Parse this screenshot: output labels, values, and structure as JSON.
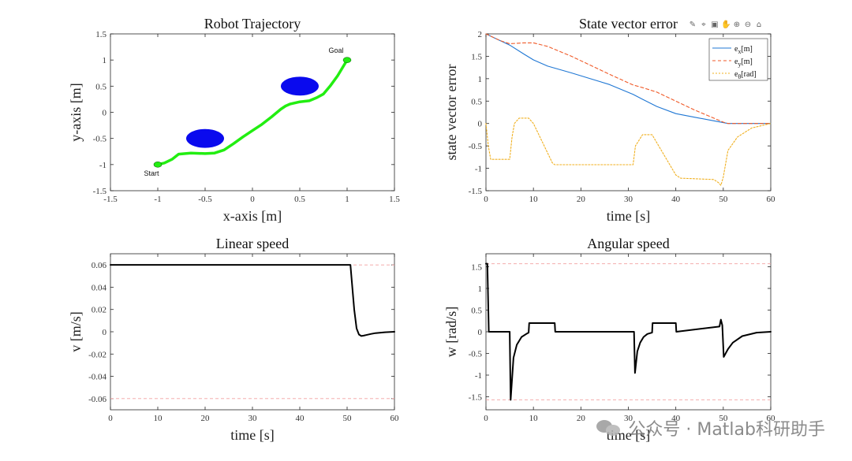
{
  "toolbar": {
    "icons": [
      "brush-icon",
      "pan-data-icon",
      "save-icon",
      "hand-pan-icon",
      "zoom-in-icon",
      "zoom-out-icon",
      "home-icon"
    ]
  },
  "watermark": {
    "text": "公众号 · Matlab科研助手"
  },
  "chart_data": [
    {
      "type": "line",
      "title": "Robot Trajectory",
      "xlabel": "x-axis [m]",
      "ylabel": "y-axis [m]",
      "xlim": [
        -1.5,
        1.5
      ],
      "ylim": [
        -1.5,
        1.5
      ],
      "xticks": [
        "-1.5",
        "-1",
        "-0.5",
        "0",
        "0.5",
        "1",
        "1.5"
      ],
      "yticks": [
        "1.5",
        "1",
        "0.5",
        "0",
        "-0.5",
        "-1",
        "-1.5"
      ],
      "grid": false,
      "path_color": "#22ee11",
      "obstacle_color": "#0a0aee",
      "series": [
        {
          "x": [
            -1.0,
            -0.93,
            -0.85,
            -0.78,
            -0.65,
            -0.5,
            -0.4,
            -0.3,
            -0.2,
            -0.1,
            0.0,
            0.1,
            0.2,
            0.3,
            0.35,
            0.4,
            0.5,
            0.6,
            0.68,
            0.75,
            0.82,
            0.9,
            0.96,
            1.0
          ],
          "y": [
            -1.0,
            -0.97,
            -0.9,
            -0.8,
            -0.78,
            -0.79,
            -0.78,
            -0.72,
            -0.6,
            -0.47,
            -0.35,
            -0.23,
            -0.09,
            0.06,
            0.12,
            0.16,
            0.2,
            0.22,
            0.28,
            0.35,
            0.5,
            0.7,
            0.88,
            1.0
          ]
        }
      ],
      "obstacles": [
        {
          "cx": -0.5,
          "cy": -0.5,
          "rx": 0.2,
          "ry": 0.18
        },
        {
          "cx": 0.5,
          "cy": 0.5,
          "rx": 0.2,
          "ry": 0.18
        }
      ],
      "annotations": [
        {
          "text": "Start",
          "x": -1.0,
          "y": -1.0
        },
        {
          "text": "Goal",
          "x": 1.0,
          "y": 1.0
        }
      ]
    },
    {
      "type": "line",
      "title": "State vector error",
      "xlabel": "time [s]",
      "ylabel": "state vector error",
      "xlim": [
        0,
        60
      ],
      "ylim": [
        -1.5,
        2
      ],
      "xticks": [
        "0",
        "10",
        "20",
        "30",
        "40",
        "50",
        "60"
      ],
      "yticks": [
        "2",
        "1.5",
        "1",
        "0.5",
        "0",
        "-0.5",
        "-1",
        "-1.5"
      ],
      "grid": false,
      "legend_position": "top-right",
      "legend": [
        {
          "label": "e",
          "sub": "x",
          "unit": "[m]",
          "color": "#1f77d4",
          "dash": ""
        },
        {
          "label": "e",
          "sub": "y",
          "unit": "[m]",
          "color": "#f05a28",
          "dash": "4,3"
        },
        {
          "label": "e",
          "sub": "θ",
          "unit": "[rad]",
          "color": "#f0b020",
          "dash": "2,2"
        }
      ],
      "series": [
        {
          "x": [
            0,
            2,
            5,
            8,
            10,
            13,
            18,
            22,
            26,
            31,
            33,
            36,
            40,
            44,
            48,
            50,
            51,
            53,
            55,
            60
          ],
          "y": [
            2.0,
            1.9,
            1.75,
            1.55,
            1.42,
            1.28,
            1.13,
            1.0,
            0.87,
            0.65,
            0.54,
            0.38,
            0.22,
            0.14,
            0.06,
            0.02,
            0.0,
            0.0,
            0.0,
            0.0
          ]
        },
        {
          "x": [
            0,
            3,
            5,
            8,
            10,
            13,
            18,
            22,
            26,
            31,
            33,
            36,
            40,
            44,
            48,
            50,
            51,
            53,
            55,
            60
          ],
          "y": [
            2.0,
            1.85,
            1.78,
            1.8,
            1.8,
            1.72,
            1.5,
            1.3,
            1.1,
            0.86,
            0.8,
            0.7,
            0.5,
            0.3,
            0.12,
            0.03,
            0.0,
            0.0,
            0.0,
            0.0
          ]
        },
        {
          "x": [
            0,
            0.5,
            1,
            5,
            5.5,
            6,
            7,
            9,
            10,
            14,
            14.5,
            31,
            31.5,
            33,
            35,
            40,
            41,
            48,
            49,
            49.5,
            50,
            51,
            53,
            56,
            60
          ],
          "y": [
            0.0,
            -0.5,
            -0.8,
            -0.8,
            -0.3,
            0.0,
            0.12,
            0.12,
            0.0,
            -0.88,
            -0.92,
            -0.92,
            -0.5,
            -0.25,
            -0.25,
            -1.15,
            -1.22,
            -1.25,
            -1.32,
            -1.38,
            -1.2,
            -0.6,
            -0.3,
            -0.1,
            0.0
          ]
        }
      ]
    },
    {
      "type": "line",
      "title": "Linear speed",
      "xlabel": "time [s]",
      "ylabel": "v [m/s]",
      "xlim": [
        0,
        60
      ],
      "ylim": [
        -0.07,
        0.07
      ],
      "xticks": [
        "0",
        "10",
        "20",
        "30",
        "40",
        "50",
        "60"
      ],
      "yticks": [
        "0.06",
        "0.04",
        "0.02",
        "0",
        "-0.02",
        "-0.04",
        "-0.06"
      ],
      "grid": false,
      "limits": [
        0.06,
        -0.06
      ],
      "limit_color": "#f2a0a0",
      "series": [
        {
          "x": [
            0,
            50.7,
            51,
            51.5,
            52,
            52.5,
            53,
            53.5,
            54,
            55,
            56,
            58,
            60
          ],
          "y": [
            0.06,
            0.06,
            0.045,
            0.02,
            0.003,
            -0.0025,
            -0.0038,
            -0.0035,
            -0.003,
            -0.002,
            -0.0012,
            -0.0004,
            0.0
          ]
        }
      ]
    },
    {
      "type": "line",
      "title": "Angular speed",
      "xlabel": "time [s]",
      "ylabel": "w [rad/s]",
      "xlim": [
        0,
        60
      ],
      "ylim": [
        -1.8,
        1.8
      ],
      "xticks": [
        "0",
        "10",
        "20",
        "30",
        "40",
        "50",
        "60"
      ],
      "yticks": [
        "1.5",
        "1",
        "0.5",
        "0",
        "-0.5",
        "-1",
        "-1.5"
      ],
      "grid": false,
      "limits": [
        1.57,
        -1.57
      ],
      "limit_color": "#f2a0a0",
      "series": [
        {
          "x": [
            0,
            0.3,
            0.6,
            5,
            5.2,
            5.8,
            6.5,
            7.5,
            8.5,
            9,
            9.1,
            14.5,
            14.6,
            31.2,
            31.4,
            31.9,
            32.5,
            33.2,
            34,
            35,
            35.1,
            40,
            40.1,
            49.2,
            49.5,
            49.8,
            50.1,
            51,
            52,
            54,
            57,
            60
          ],
          "y": [
            1.57,
            1.57,
            0.0,
            0.0,
            -1.57,
            -0.6,
            -0.3,
            -0.12,
            -0.05,
            -0.02,
            0.2,
            0.2,
            0.0,
            0.0,
            -0.95,
            -0.45,
            -0.25,
            -0.12,
            -0.05,
            -0.02,
            0.2,
            0.2,
            0.0,
            0.12,
            0.28,
            0.15,
            -0.58,
            -0.4,
            -0.25,
            -0.1,
            -0.02,
            0.0
          ]
        }
      ]
    }
  ]
}
